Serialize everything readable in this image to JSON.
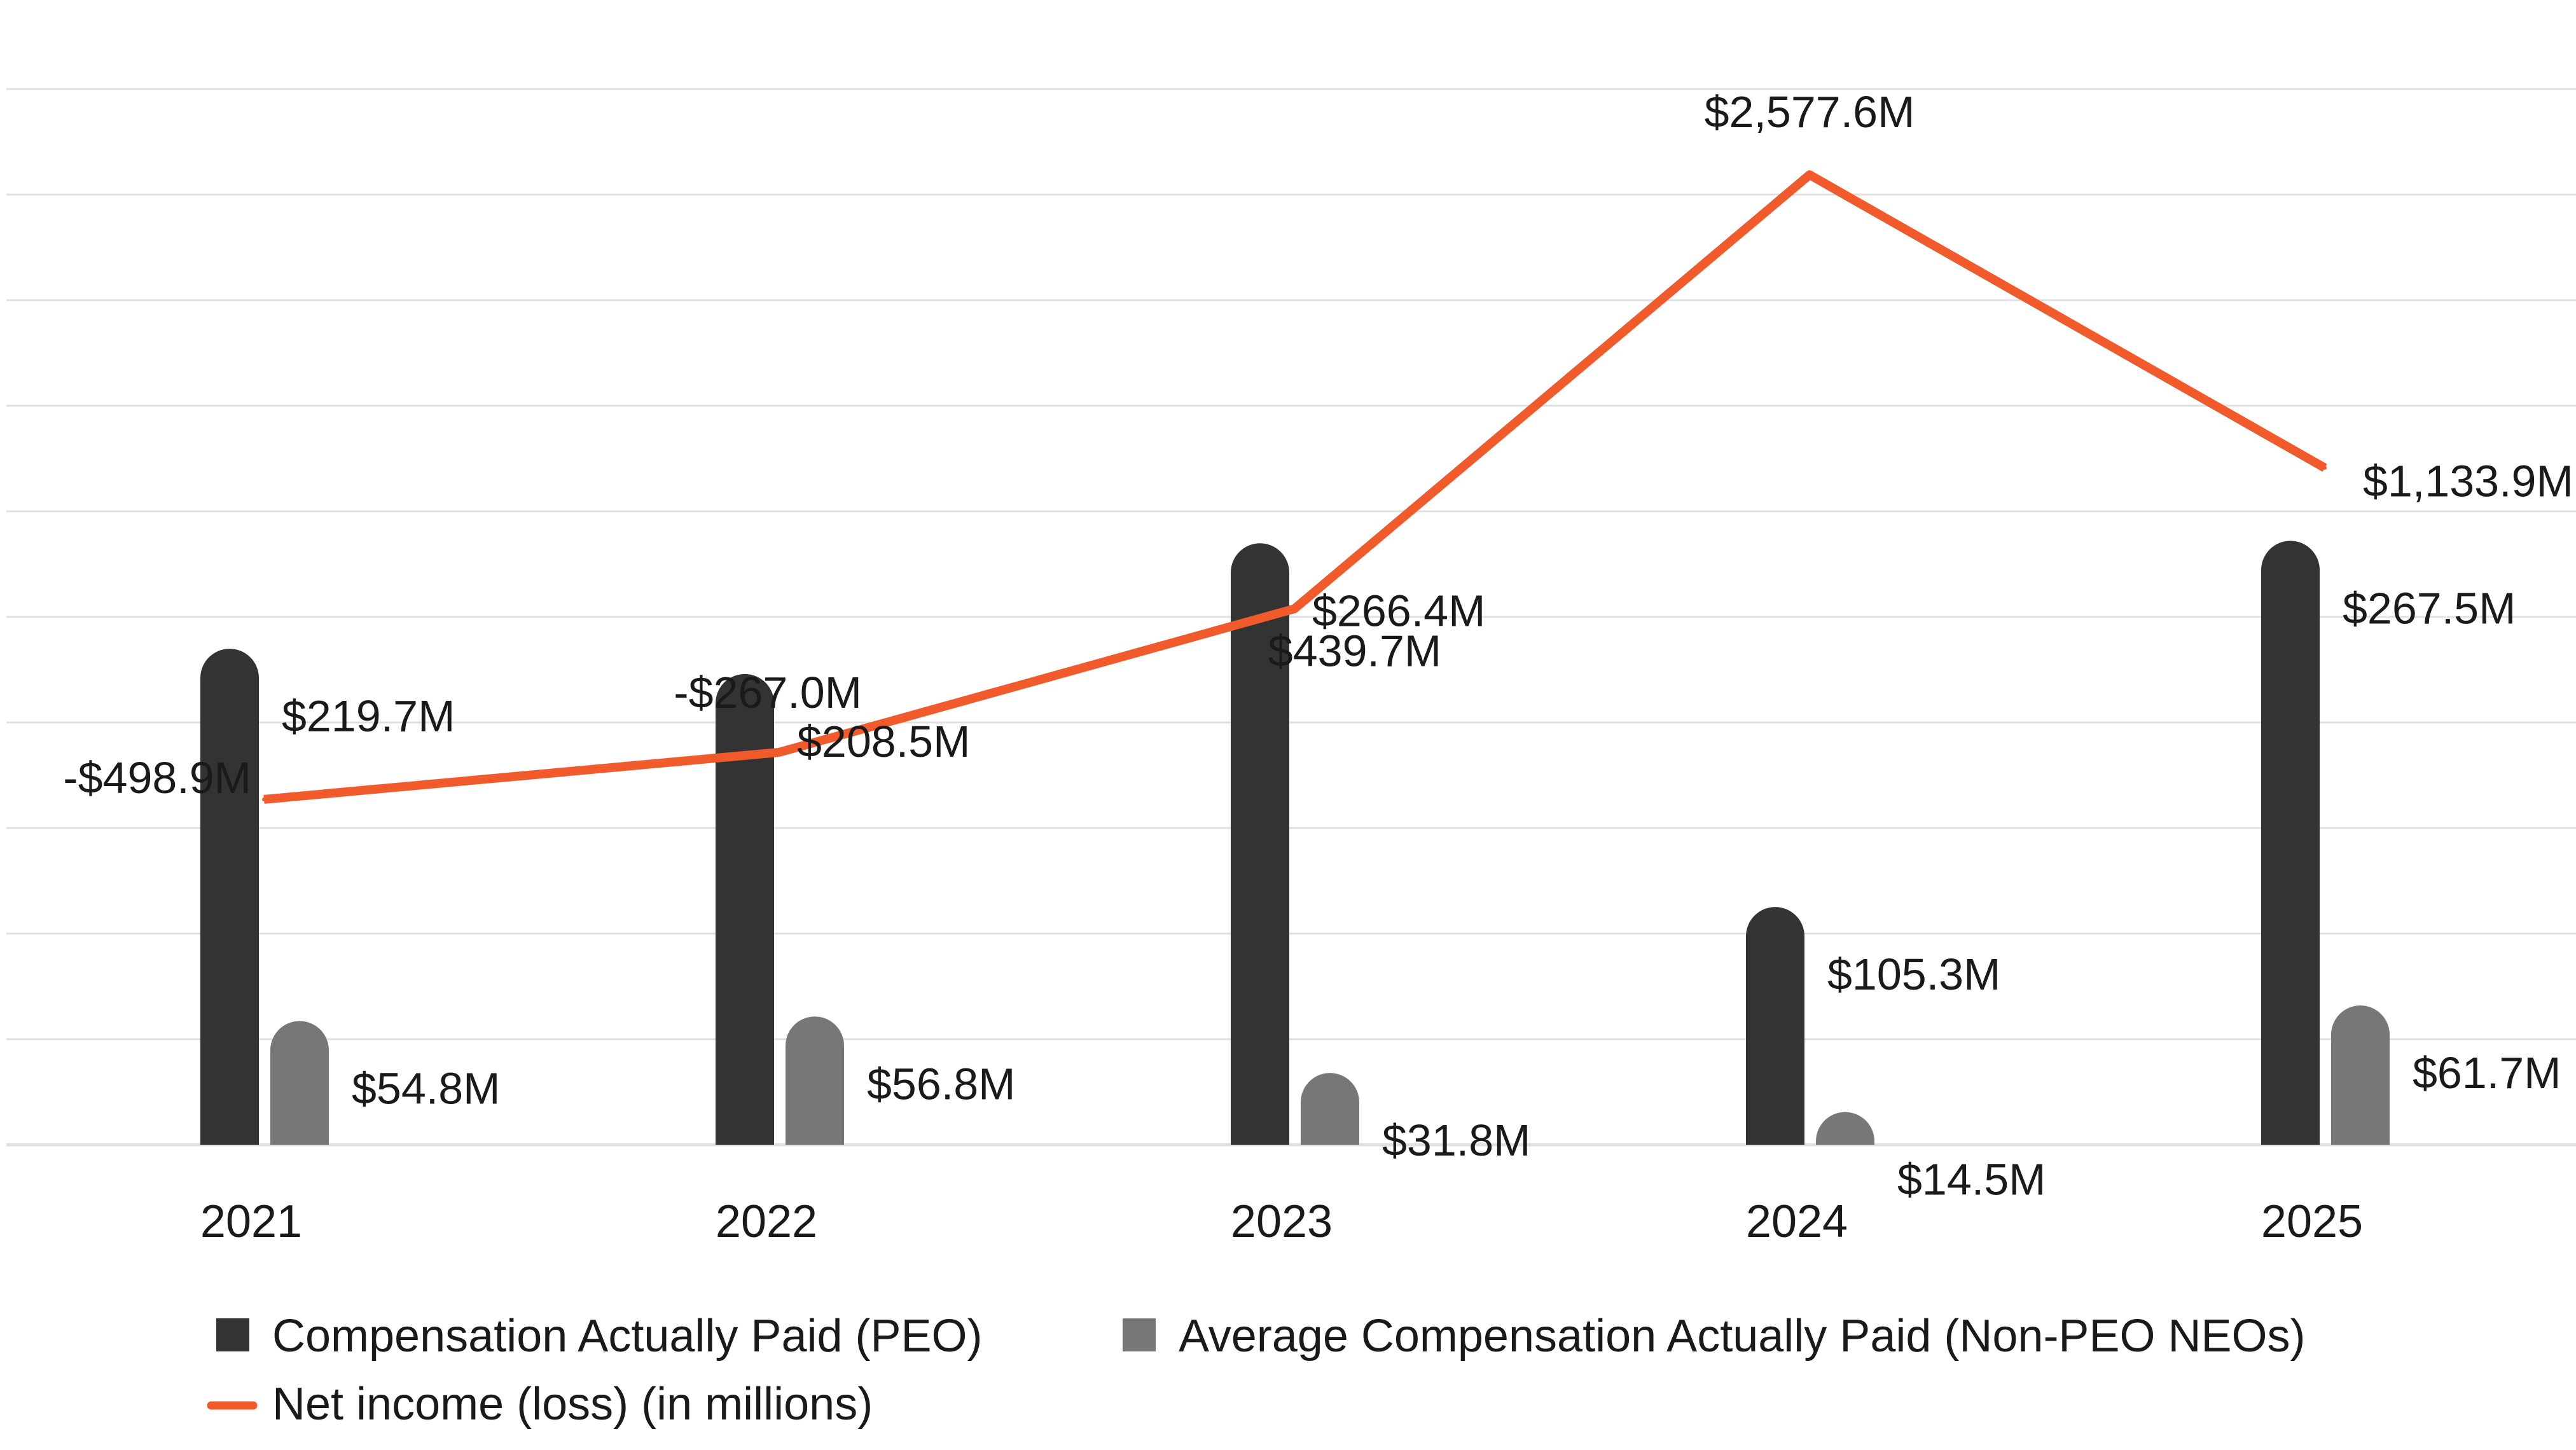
{
  "chart_data": {
    "type": "bar",
    "categories": [
      "2021",
      "2022",
      "2023",
      "2024",
      "2025"
    ],
    "series": [
      {
        "name": "Compensation Actually Paid (PEO)",
        "kind": "bar",
        "color": "#333333",
        "values": [
          219.7,
          208.5,
          266.4,
          105.3,
          267.5
        ],
        "labels": [
          "$219.7M",
          "$208.5M",
          "$266.4M",
          "$105.3M",
          "$267.5M"
        ]
      },
      {
        "name": "Average Compensation Actually Paid (Non-PEO NEOs)",
        "kind": "bar",
        "color": "#777777",
        "values": [
          54.8,
          56.8,
          31.8,
          14.5,
          61.7
        ],
        "labels": [
          "$54.8M",
          "$56.8M",
          "$31.8M",
          "$14.5M",
          "$61.7M"
        ]
      },
      {
        "name": "Net income (loss) (in millions)",
        "kind": "line",
        "color": "#f15a2b",
        "values": [
          -498.9,
          -267.0,
          439.7,
          2577.6,
          1133.9
        ],
        "labels": [
          "-$498.9M",
          "-$267.0M",
          "$439.7M",
          "$2,577.6M",
          "$1,133.9M"
        ]
      }
    ],
    "bar_ylim": [
      0,
      300
    ],
    "line_ylim": [
      -2200,
      3000
    ],
    "grid": "horizontal",
    "legend_position": "bottom",
    "gridline_color": "#e0e0e0"
  }
}
